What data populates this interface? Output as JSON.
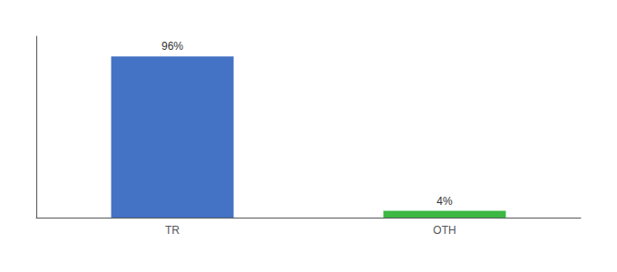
{
  "chart_data": {
    "type": "bar",
    "categories": [
      "TR",
      "OTH"
    ],
    "values": [
      96,
      4
    ],
    "value_labels": [
      "96%",
      "4%"
    ],
    "colors": [
      "#4472c4",
      "#3cb843"
    ],
    "ylim": [
      0,
      108
    ],
    "data_labels": true,
    "tick_labels": "x",
    "grid": false
  }
}
